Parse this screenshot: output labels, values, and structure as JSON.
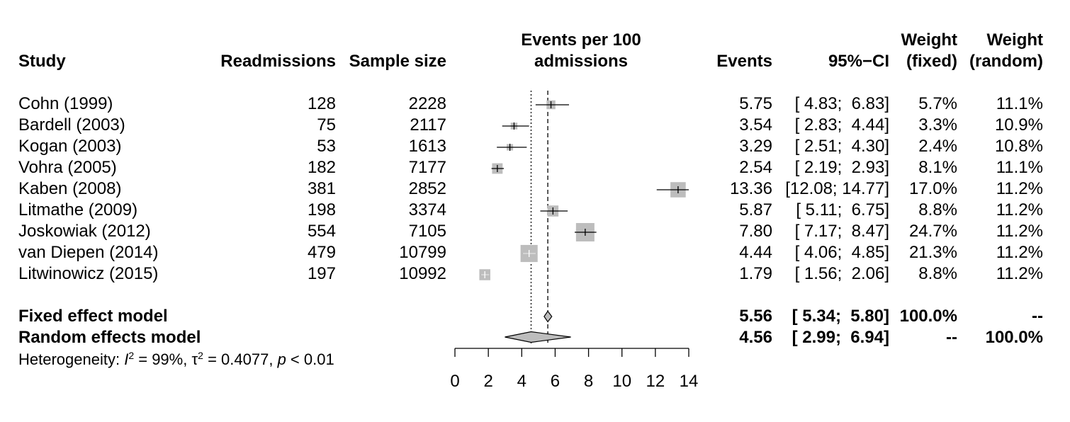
{
  "headers": {
    "study": "Study",
    "readmissions": "Readmissions",
    "sample_size": "Sample size",
    "plot_line1": "Events per 100",
    "plot_line2": "admissions",
    "events": "Events",
    "ci": "95%−CI",
    "weight_fixed_line1": "Weight",
    "weight_fixed_line2": "(fixed)",
    "weight_random_line1": "Weight",
    "weight_random_line2": "(random)"
  },
  "studies": [
    {
      "name": "Cohn (1999)",
      "readmissions": "128",
      "sample_size": "2228",
      "events": "5.75",
      "ci": "[ 4.83;  6.83]",
      "w_fixed": "5.7%",
      "w_random": "11.1%"
    },
    {
      "name": "Bardell (2003)",
      "readmissions": "75",
      "sample_size": "2117",
      "events": "3.54",
      "ci": "[ 2.83;  4.44]",
      "w_fixed": "3.3%",
      "w_random": "10.9%"
    },
    {
      "name": "Kogan (2003)",
      "readmissions": "53",
      "sample_size": "1613",
      "events": "3.29",
      "ci": "[ 2.51;  4.30]",
      "w_fixed": "2.4%",
      "w_random": "10.8%"
    },
    {
      "name": "Vohra (2005)",
      "readmissions": "182",
      "sample_size": "7177",
      "events": "2.54",
      "ci": "[ 2.19;  2.93]",
      "w_fixed": "8.1%",
      "w_random": "11.1%"
    },
    {
      "name": "Kaben (2008)",
      "readmissions": "381",
      "sample_size": "2852",
      "events": "13.36",
      "ci": "[12.08; 14.77]",
      "w_fixed": "17.0%",
      "w_random": "11.2%"
    },
    {
      "name": "Litmathe (2009)",
      "readmissions": "198",
      "sample_size": "3374",
      "events": "5.87",
      "ci": "[ 5.11;  6.75]",
      "w_fixed": "8.8%",
      "w_random": "11.2%"
    },
    {
      "name": "Joskowiak (2012)",
      "readmissions": "554",
      "sample_size": "7105",
      "events": "7.80",
      "ci": "[ 7.17;  8.47]",
      "w_fixed": "24.7%",
      "w_random": "11.2%"
    },
    {
      "name": "van Diepen (2014)",
      "readmissions": "479",
      "sample_size": "10799",
      "events": "4.44",
      "ci": "[ 4.06;  4.85]",
      "w_fixed": "21.3%",
      "w_random": "11.2%"
    },
    {
      "name": "Litwinowicz (2015)",
      "readmissions": "197",
      "sample_size": "10992",
      "events": "1.79",
      "ci": "[ 1.56;  2.06]",
      "w_fixed": "8.8%",
      "w_random": "11.2%"
    }
  ],
  "summaries": [
    {
      "name": "Fixed effect model",
      "events": "5.56",
      "ci": "[ 5.34;  5.80]",
      "w_fixed": "100.0%",
      "w_random": "--"
    },
    {
      "name": "Random effects model",
      "events": "4.56",
      "ci": "[ 2.99;  6.94]",
      "w_fixed": "--",
      "w_random": "100.0%"
    }
  ],
  "heterogeneity": {
    "prefix": "Heterogeneity: ",
    "i2_symbol": "I",
    "i2_exp": "2",
    "i2_value": " = 99%, ",
    "tau_symbol": "τ",
    "tau_exp": "2",
    "tau_value": " = 0.4077, ",
    "p_symbol": "p",
    "p_value": " < 0.01"
  },
  "chart_data": {
    "type": "forest",
    "xlim": [
      0,
      14
    ],
    "x_ticks": [
      0,
      2,
      4,
      6,
      8,
      10,
      12,
      14
    ],
    "studies": [
      {
        "name": "Cohn (1999)",
        "est": 5.75,
        "lo": 4.83,
        "hi": 6.83,
        "w_fixed": 5.7
      },
      {
        "name": "Bardell (2003)",
        "est": 3.54,
        "lo": 2.83,
        "hi": 4.44,
        "w_fixed": 3.3
      },
      {
        "name": "Kogan (2003)",
        "est": 3.29,
        "lo": 2.51,
        "hi": 4.3,
        "w_fixed": 2.4
      },
      {
        "name": "Vohra (2005)",
        "est": 2.54,
        "lo": 2.19,
        "hi": 2.93,
        "w_fixed": 8.1
      },
      {
        "name": "Kaben (2008)",
        "est": 13.36,
        "lo": 12.08,
        "hi": 14.77,
        "w_fixed": 17.0
      },
      {
        "name": "Litmathe (2009)",
        "est": 5.87,
        "lo": 5.11,
        "hi": 6.75,
        "w_fixed": 8.8
      },
      {
        "name": "Joskowiak (2012)",
        "est": 7.8,
        "lo": 7.17,
        "hi": 8.47,
        "w_fixed": 24.7
      },
      {
        "name": "van Diepen (2014)",
        "est": 4.44,
        "lo": 4.06,
        "hi": 4.85,
        "w_fixed": 21.3
      },
      {
        "name": "Litwinowicz (2015)",
        "est": 1.79,
        "lo": 1.56,
        "hi": 2.06,
        "w_fixed": 8.8
      }
    ],
    "fixed": {
      "est": 5.56,
      "lo": 5.34,
      "hi": 5.8
    },
    "random": {
      "est": 4.56,
      "lo": 2.99,
      "hi": 6.94
    },
    "colors": {
      "box": "#bdbdbd",
      "diamond": "#bdbdbd",
      "line": "#000000"
    }
  }
}
